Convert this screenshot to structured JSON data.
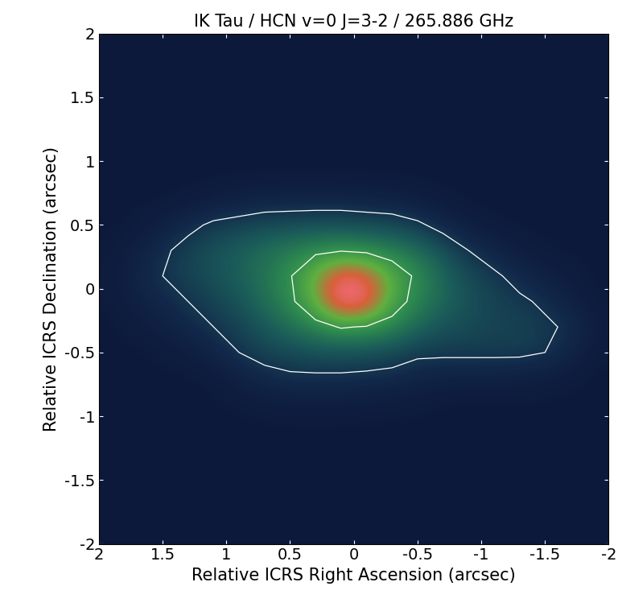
{
  "chart_data": {
    "type": "heatmap",
    "title": "IK Tau / HCN v=0 J=3-2 / 265.886 GHz",
    "x_label": "Relative ICRS Right Ascension (arcsec)",
    "y_label": "Relative ICRS Declination (arcsec)",
    "xlim": [
      2,
      -2
    ],
    "ylim": [
      -2,
      2
    ],
    "xticks": [
      2,
      1.5,
      1,
      0.5,
      0,
      -0.5,
      -1,
      -1.5,
      -2
    ],
    "yticks": [
      -2,
      -1.5,
      -1,
      -0.5,
      0,
      0.5,
      1,
      1.5,
      2
    ],
    "x": [
      1.9,
      1.7,
      1.5,
      1.3,
      1.1,
      0.9,
      0.7,
      0.5,
      0.3,
      0.1,
      -0.1,
      -0.3,
      -0.5,
      -0.7,
      -0.9,
      -1.1,
      -1.3,
      -1.5,
      -1.7,
      -1.9
    ],
    "y": [
      1.9,
      1.7,
      1.5,
      1.3,
      1.1,
      0.9,
      0.7,
      0.5,
      0.3,
      0.1,
      -0.1,
      -0.3,
      -0.5,
      -0.7,
      -0.9,
      -1.1,
      -1.3,
      -1.5,
      -1.7,
      -1.9
    ],
    "color_range": [
      0,
      1
    ],
    "contour_levels": [
      0.18,
      0.45,
      0.9
    ],
    "values": [
      [
        0.05,
        0.05,
        0.05,
        0.05,
        0.05,
        0.05,
        0.05,
        0.05,
        0.05,
        0.05,
        0.05,
        0.05,
        0.05,
        0.05,
        0.05,
        0.05,
        0.05,
        0.05,
        0.05,
        0.05
      ],
      [
        0.05,
        0.05,
        0.05,
        0.05,
        0.05,
        0.05,
        0.05,
        0.05,
        0.05,
        0.05,
        0.05,
        0.05,
        0.05,
        0.05,
        0.05,
        0.05,
        0.05,
        0.05,
        0.05,
        0.05
      ],
      [
        0.05,
        0.05,
        0.05,
        0.05,
        0.05,
        0.05,
        0.05,
        0.05,
        0.05,
        0.05,
        0.05,
        0.05,
        0.05,
        0.05,
        0.05,
        0.05,
        0.05,
        0.05,
        0.05,
        0.05
      ],
      [
        0.05,
        0.05,
        0.05,
        0.05,
        0.05,
        0.05,
        0.05,
        0.05,
        0.05,
        0.05,
        0.05,
        0.05,
        0.05,
        0.05,
        0.05,
        0.05,
        0.05,
        0.05,
        0.05,
        0.05
      ],
      [
        0.05,
        0.05,
        0.05,
        0.05,
        0.05,
        0.05,
        0.05,
        0.05,
        0.05,
        0.05,
        0.05,
        0.05,
        0.05,
        0.05,
        0.05,
        0.05,
        0.05,
        0.05,
        0.05,
        0.05
      ],
      [
        0.05,
        0.05,
        0.05,
        0.05,
        0.05,
        0.05,
        0.05,
        0.05,
        0.05,
        0.05,
        0.05,
        0.05,
        0.05,
        0.05,
        0.05,
        0.05,
        0.05,
        0.05,
        0.05,
        0.05
      ],
      [
        0.05,
        0.05,
        0.05,
        0.06,
        0.08,
        0.1,
        0.12,
        0.12,
        0.12,
        0.12,
        0.11,
        0.1,
        0.08,
        0.06,
        0.05,
        0.05,
        0.05,
        0.05,
        0.05,
        0.05
      ],
      [
        0.05,
        0.06,
        0.1,
        0.15,
        0.2,
        0.22,
        0.24,
        0.25,
        0.26,
        0.26,
        0.25,
        0.24,
        0.2,
        0.14,
        0.08,
        0.06,
        0.05,
        0.05,
        0.05,
        0.05
      ],
      [
        0.06,
        0.1,
        0.16,
        0.22,
        0.26,
        0.3,
        0.34,
        0.38,
        0.42,
        0.44,
        0.42,
        0.38,
        0.34,
        0.26,
        0.18,
        0.12,
        0.08,
        0.06,
        0.05,
        0.05
      ],
      [
        0.07,
        0.12,
        0.18,
        0.22,
        0.26,
        0.3,
        0.36,
        0.44,
        0.6,
        0.8,
        0.75,
        0.55,
        0.42,
        0.32,
        0.24,
        0.2,
        0.14,
        0.1,
        0.07,
        0.05
      ],
      [
        0.06,
        0.1,
        0.14,
        0.18,
        0.22,
        0.27,
        0.34,
        0.42,
        0.58,
        0.85,
        0.8,
        0.52,
        0.4,
        0.32,
        0.26,
        0.22,
        0.2,
        0.16,
        0.1,
        0.06
      ],
      [
        0.05,
        0.07,
        0.1,
        0.14,
        0.18,
        0.22,
        0.28,
        0.34,
        0.4,
        0.46,
        0.44,
        0.4,
        0.32,
        0.26,
        0.24,
        0.22,
        0.22,
        0.2,
        0.16,
        0.08
      ],
      [
        0.05,
        0.05,
        0.06,
        0.08,
        0.12,
        0.18,
        0.22,
        0.24,
        0.26,
        0.26,
        0.26,
        0.24,
        0.2,
        0.2,
        0.2,
        0.2,
        0.2,
        0.18,
        0.12,
        0.06
      ],
      [
        0.05,
        0.05,
        0.05,
        0.05,
        0.06,
        0.1,
        0.14,
        0.16,
        0.16,
        0.16,
        0.15,
        0.14,
        0.12,
        0.1,
        0.1,
        0.1,
        0.09,
        0.08,
        0.06,
        0.05
      ],
      [
        0.05,
        0.05,
        0.05,
        0.05,
        0.05,
        0.06,
        0.07,
        0.08,
        0.08,
        0.08,
        0.07,
        0.07,
        0.06,
        0.05,
        0.05,
        0.05,
        0.05,
        0.05,
        0.05,
        0.05
      ],
      [
        0.05,
        0.05,
        0.05,
        0.05,
        0.05,
        0.05,
        0.05,
        0.05,
        0.05,
        0.05,
        0.05,
        0.05,
        0.05,
        0.05,
        0.05,
        0.05,
        0.05,
        0.05,
        0.05,
        0.05
      ],
      [
        0.05,
        0.05,
        0.05,
        0.05,
        0.05,
        0.05,
        0.05,
        0.05,
        0.05,
        0.05,
        0.05,
        0.05,
        0.05,
        0.05,
        0.05,
        0.05,
        0.05,
        0.05,
        0.05,
        0.05
      ],
      [
        0.05,
        0.05,
        0.05,
        0.05,
        0.05,
        0.05,
        0.05,
        0.05,
        0.05,
        0.05,
        0.05,
        0.05,
        0.05,
        0.05,
        0.05,
        0.05,
        0.05,
        0.05,
        0.05,
        0.05
      ],
      [
        0.05,
        0.05,
        0.05,
        0.05,
        0.05,
        0.05,
        0.05,
        0.05,
        0.05,
        0.05,
        0.05,
        0.05,
        0.05,
        0.05,
        0.05,
        0.05,
        0.05,
        0.05,
        0.05,
        0.05
      ],
      [
        0.05,
        0.05,
        0.05,
        0.05,
        0.05,
        0.05,
        0.05,
        0.05,
        0.05,
        0.05,
        0.05,
        0.05,
        0.05,
        0.05,
        0.05,
        0.05,
        0.05,
        0.05,
        0.05,
        0.05
      ]
    ]
  }
}
